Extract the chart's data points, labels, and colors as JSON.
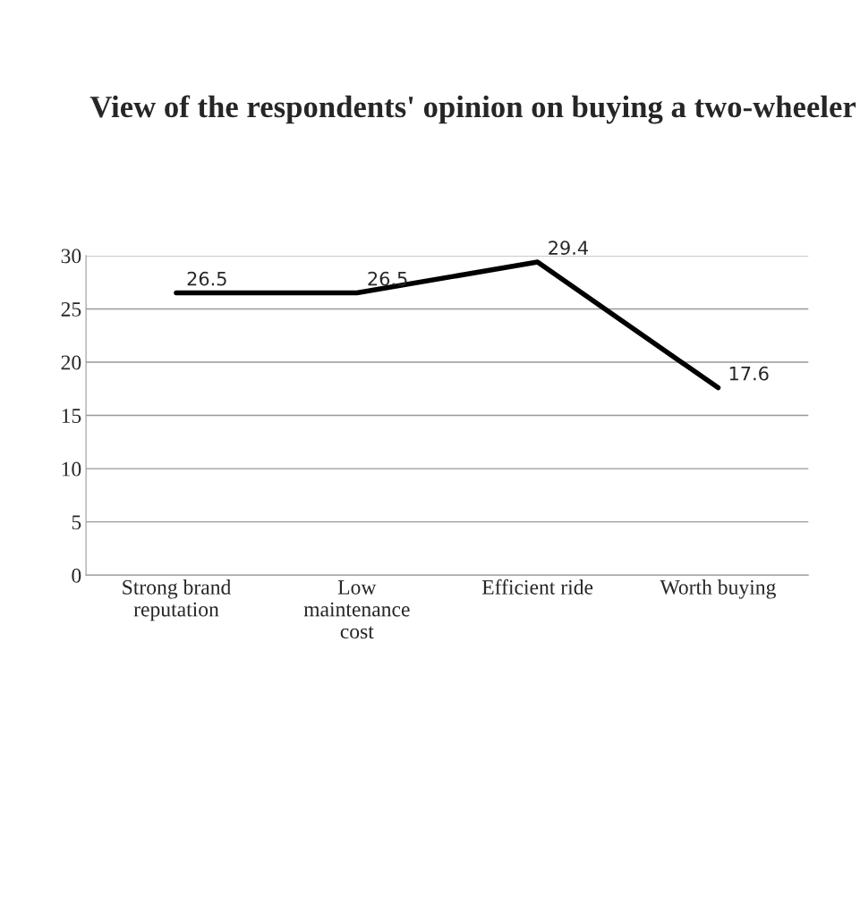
{
  "chart_data": {
    "type": "line",
    "title": "View of the respondents' opinion on buying a two-wheeler",
    "categories": [
      "Strong brand\nreputation",
      "Low\nmaintenance\ncost",
      "Efficient ride",
      "Worth buying"
    ],
    "series": [
      {
        "color": "#000000",
        "values": [
          26.5,
          26.5,
          29.4,
          17.6
        ]
      }
    ],
    "ylim": [
      0,
      30
    ],
    "yticks": [
      0,
      5,
      10,
      15,
      20,
      25,
      30
    ],
    "grid": "y",
    "data_labels": true,
    "marker": "none",
    "line_style": "solid",
    "legend": false
  }
}
